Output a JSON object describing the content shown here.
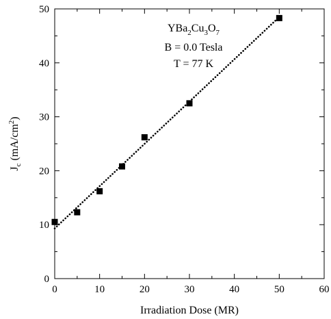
{
  "chart_data": {
    "type": "scatter",
    "xlabel": "Irradiation Dose (MR)",
    "ylabel": {
      "base": "J",
      "sub": "c",
      "mid": " (mA/cm",
      "sup": "2",
      "end": ")"
    },
    "xlim": [
      0,
      60
    ],
    "ylim": [
      0,
      50
    ],
    "x_ticks": [
      0,
      10,
      20,
      30,
      40,
      50,
      60
    ],
    "y_ticks": [
      0,
      10,
      20,
      30,
      40,
      50
    ],
    "grid": false,
    "series": [
      {
        "marker": "square",
        "color": "#000000",
        "points": [
          {
            "x": 0,
            "y": 10.5
          },
          {
            "x": 5,
            "y": 12.3
          },
          {
            "x": 10,
            "y": 16.2
          },
          {
            "x": 15,
            "y": 20.8
          },
          {
            "x": 20,
            "y": 26.2
          },
          {
            "x": 30,
            "y": 32.5
          },
          {
            "x": 50,
            "y": 48.3
          }
        ]
      }
    ],
    "fit_line": {
      "style": "dotted",
      "color": "#000000",
      "x": [
        0,
        50
      ],
      "y": [
        9.3,
        48.5
      ]
    },
    "annotation": {
      "formula": [
        {
          "text": "YBa",
          "type": "normal"
        },
        {
          "text": "2",
          "type": "sub"
        },
        {
          "text": "Cu",
          "type": "normal"
        },
        {
          "text": "3",
          "type": "sub"
        },
        {
          "text": "O",
          "type": "normal"
        },
        {
          "text": "7",
          "type": "sub"
        }
      ],
      "field": "B = 0.0 Tesla",
      "temperature": "T = 77 K"
    }
  }
}
